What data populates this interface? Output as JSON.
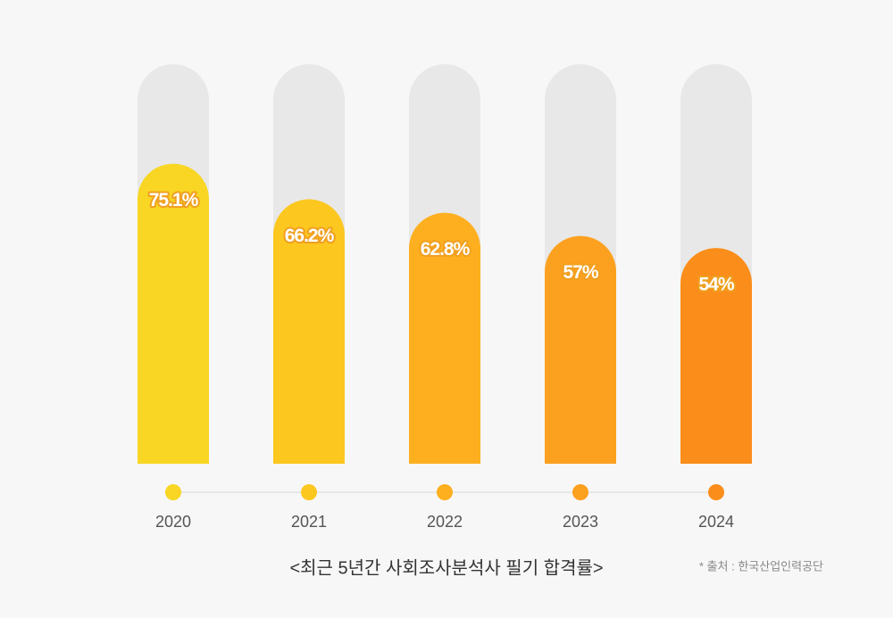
{
  "chart_data": {
    "type": "bar",
    "title": "<최근 5년간 사회조사분석사 필기 합격률>",
    "source": "* 출처 : 한국산업인력공단",
    "categories": [
      "2020",
      "2021",
      "2022",
      "2023",
      "2024"
    ],
    "values": [
      75.1,
      66.2,
      62.8,
      57,
      54
    ],
    "value_labels": [
      "75.1%",
      "66.2%",
      "62.8%",
      "57%",
      "54%"
    ],
    "colors": [
      "#f8d623",
      "#fcc71f",
      "#fdaf1f",
      "#fca11f",
      "#fb8d1a"
    ],
    "ylim": [
      0,
      100
    ]
  }
}
